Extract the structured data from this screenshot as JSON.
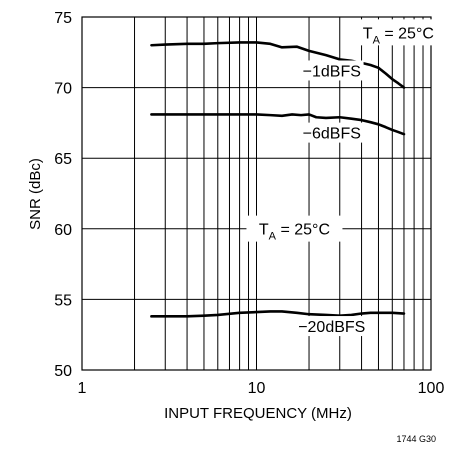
{
  "chart_data": {
    "type": "line",
    "xlabel": "INPUT FREQUENCY (MHz)",
    "ylabel": "SNR (dBc)",
    "xscale": "log",
    "xlim": [
      1,
      100
    ],
    "ylim": [
      50,
      75
    ],
    "xticks": [
      1,
      10,
      100
    ],
    "xtick_labels": [
      "1",
      "10",
      "100"
    ],
    "yticks": [
      50,
      55,
      60,
      65,
      70,
      75
    ],
    "ytick_labels": [
      "50",
      "55",
      "60",
      "65",
      "70",
      "75"
    ],
    "grid": true,
    "figure_code": "1744 G30",
    "annotations": [
      {
        "id": "ta-top",
        "text": "T",
        "sub": "A",
        "rest": " = 25°C",
        "x": 65,
        "y": 73.7
      },
      {
        "id": "ta-mid",
        "text": "T",
        "sub": "A",
        "rest": " = 25°C",
        "x": 16.5,
        "y": 59.8
      }
    ],
    "series": [
      {
        "name": "−1dBFS",
        "label_x": 27,
        "label_y": 71.0,
        "x": [
          2.5,
          3,
          4,
          5,
          6,
          8,
          10,
          12,
          14,
          17,
          20,
          25,
          30,
          35,
          40,
          45,
          50,
          55,
          60,
          65,
          70
        ],
        "y": [
          73.0,
          73.05,
          73.1,
          73.1,
          73.15,
          73.2,
          73.2,
          73.1,
          72.85,
          72.9,
          72.6,
          72.3,
          72.0,
          71.9,
          71.75,
          71.6,
          71.4,
          71.0,
          70.6,
          70.3,
          70.0
        ]
      },
      {
        "name": "−6dBFS",
        "label_x": 27,
        "label_y": 66.6,
        "x": [
          2.5,
          3,
          4,
          5,
          6,
          8,
          10,
          12,
          14,
          16,
          18,
          20,
          22,
          25,
          30,
          35,
          40,
          45,
          50,
          55,
          60,
          65,
          70
        ],
        "y": [
          68.1,
          68.1,
          68.1,
          68.1,
          68.1,
          68.1,
          68.1,
          68.05,
          68.0,
          68.1,
          68.05,
          68.1,
          67.9,
          67.85,
          67.9,
          67.8,
          67.7,
          67.55,
          67.4,
          67.2,
          67.0,
          66.85,
          66.7
        ]
      },
      {
        "name": "−20dBFS",
        "label_x": 27,
        "label_y": 52.9,
        "x": [
          2.5,
          3,
          4,
          5,
          6,
          8,
          10,
          12,
          14,
          17,
          20,
          25,
          30,
          35,
          40,
          45,
          50,
          60,
          70
        ],
        "y": [
          53.8,
          53.8,
          53.8,
          53.85,
          53.9,
          54.05,
          54.1,
          54.15,
          54.15,
          54.05,
          53.95,
          53.9,
          53.85,
          53.9,
          54.0,
          54.05,
          54.05,
          54.05,
          54.0
        ]
      }
    ]
  }
}
